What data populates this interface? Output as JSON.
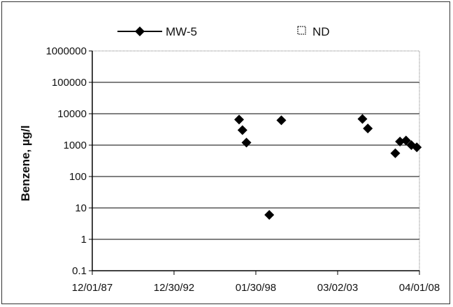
{
  "chart_data": {
    "type": "scatter",
    "title": "",
    "xlabel": "",
    "ylabel": "Benzene, µg/l",
    "y_scale": "log",
    "ylim": [
      0.1,
      1000000
    ],
    "y_ticks": [
      "0.1",
      "1",
      "10",
      "100",
      "1000",
      "10000",
      "100000",
      "1000000"
    ],
    "xlim": [
      "1987-12-01",
      "2008-04-01"
    ],
    "x_ticks": [
      {
        "date": "1987-12-01",
        "label": "12/01/87"
      },
      {
        "date": "1992-12-30",
        "label": "12/30/92"
      },
      {
        "date": "1998-01-30",
        "label": "01/30/98"
      },
      {
        "date": "2003-03-02",
        "label": "03/02/03"
      },
      {
        "date": "2008-04-01",
        "label": "04/01/08"
      }
    ],
    "grid": "horizontal",
    "legend_position": "top",
    "series": [
      {
        "name": "MW-5",
        "marker": "diamond",
        "color": "#000000",
        "points": [
          {
            "x": "1997-01-15",
            "y": 6500
          },
          {
            "x": "1997-04-01",
            "y": 3000
          },
          {
            "x": "1997-07-01",
            "y": 1200
          },
          {
            "x": "1998-12-01",
            "y": 6
          },
          {
            "x": "1999-09-01",
            "y": 6200
          },
          {
            "x": "2004-09-15",
            "y": 6800
          },
          {
            "x": "2005-01-15",
            "y": 3400
          },
          {
            "x": "2006-10-01",
            "y": 550
          },
          {
            "x": "2007-01-15",
            "y": 1300
          },
          {
            "x": "2007-06-01",
            "y": 1400
          },
          {
            "x": "2007-10-01",
            "y": 1000
          },
          {
            "x": "2008-02-01",
            "y": 850
          }
        ]
      },
      {
        "name": "ND",
        "marker": "square-open",
        "color": "#000000",
        "points": []
      }
    ]
  }
}
